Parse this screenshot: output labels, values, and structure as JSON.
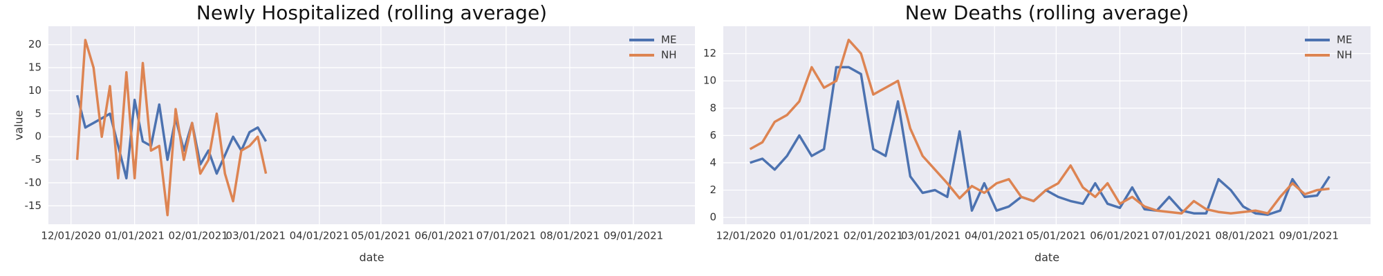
{
  "chart_data": [
    {
      "type": "line",
      "title": "Newly Hospitalized (rolling average)",
      "xlabel": "date",
      "ylabel": "value",
      "x": [
        "2020-12-04",
        "2020-12-08",
        "2020-12-12",
        "2020-12-16",
        "2020-12-20",
        "2020-12-24",
        "2020-12-28",
        "2021-01-01",
        "2021-01-05",
        "2021-01-09",
        "2021-01-13",
        "2021-01-17",
        "2021-01-21",
        "2021-01-25",
        "2021-01-29",
        "2021-02-02",
        "2021-02-06",
        "2021-02-10",
        "2021-02-14",
        "2021-02-18",
        "2021-02-22",
        "2021-02-26",
        "2021-03-02",
        "2021-03-06"
      ],
      "series": [
        {
          "name": "ME",
          "color": "#4c72b0",
          "values": [
            9,
            2,
            3,
            4,
            5,
            -2,
            -9,
            8,
            -1,
            -2,
            7,
            -5,
            4,
            -3,
            3,
            -6,
            -3,
            -8,
            -4,
            0,
            -3,
            1,
            2,
            -1
          ]
        },
        {
          "name": "NH",
          "color": "#dd8452",
          "values": [
            -5,
            21,
            15,
            0,
            11,
            -9,
            14,
            -9,
            16,
            -3,
            -2,
            -17,
            6,
            -5,
            3,
            -8,
            -5,
            5,
            -8,
            -14,
            -3,
            -2,
            0,
            -8
          ]
        }
      ],
      "xlim": [
        "2020-11-20",
        "2021-10-01"
      ],
      "xticks": [
        {
          "value": "2020-12-01",
          "label": "12/01/2020"
        },
        {
          "value": "2021-01-01",
          "label": "01/01/2021"
        },
        {
          "value": "2021-02-01",
          "label": "02/01/2021"
        },
        {
          "value": "2021-03-01",
          "label": "03/01/2021"
        },
        {
          "value": "2021-04-01",
          "label": "04/01/2021"
        },
        {
          "value": "2021-05-01",
          "label": "05/01/2021"
        },
        {
          "value": "2021-06-01",
          "label": "06/01/2021"
        },
        {
          "value": "2021-07-01",
          "label": "07/01/2021"
        },
        {
          "value": "2021-08-01",
          "label": "08/01/2021"
        },
        {
          "value": "2021-09-01",
          "label": "09/01/2021"
        }
      ],
      "ylim": [
        -19,
        24
      ],
      "yticks": [
        -15,
        -10,
        -5,
        0,
        5,
        10,
        15,
        20
      ],
      "grid": true,
      "legend": "upper right"
    },
    {
      "type": "line",
      "title": "New Deaths (rolling average)",
      "xlabel": "date",
      "x": [
        "2020-12-03",
        "2020-12-09",
        "2020-12-15",
        "2020-12-21",
        "2020-12-27",
        "2021-01-02",
        "2021-01-08",
        "2021-01-14",
        "2021-01-20",
        "2021-01-26",
        "2021-02-01",
        "2021-02-07",
        "2021-02-13",
        "2021-02-19",
        "2021-02-25",
        "2021-03-03",
        "2021-03-09",
        "2021-03-15",
        "2021-03-21",
        "2021-03-27",
        "2021-04-02",
        "2021-04-08",
        "2021-04-14",
        "2021-04-20",
        "2021-04-26",
        "2021-05-02",
        "2021-05-08",
        "2021-05-14",
        "2021-05-20",
        "2021-05-26",
        "2021-06-01",
        "2021-06-07",
        "2021-06-13",
        "2021-06-19",
        "2021-06-25",
        "2021-07-01",
        "2021-07-07",
        "2021-07-13",
        "2021-07-19",
        "2021-07-25",
        "2021-07-31",
        "2021-08-06",
        "2021-08-12",
        "2021-08-18",
        "2021-08-24",
        "2021-08-30",
        "2021-09-05",
        "2021-09-11"
      ],
      "series": [
        {
          "name": "ME",
          "color": "#4c72b0",
          "values": [
            4,
            4.3,
            3.5,
            4.5,
            6,
            4.5,
            5,
            11,
            11,
            10.5,
            5,
            4.5,
            8.5,
            3,
            1.8,
            2,
            1.5,
            6.3,
            0.5,
            2.5,
            0.5,
            0.8,
            1.5,
            1.2,
            2,
            1.5,
            1.2,
            1,
            2.5,
            1,
            0.7,
            2.2,
            0.6,
            0.5,
            1.5,
            0.5,
            0.3,
            0.3,
            2.8,
            2,
            0.8,
            0.3,
            0.2,
            0.5,
            2.8,
            1.5,
            1.6,
            3
          ]
        },
        {
          "name": "NH",
          "color": "#dd8452",
          "values": [
            5,
            5.5,
            7,
            7.5,
            8.5,
            11,
            9.5,
            10,
            13,
            12,
            9,
            9.5,
            10,
            6.5,
            4.5,
            3.5,
            2.5,
            1.4,
            2.3,
            1.8,
            2.5,
            2.8,
            1.5,
            1.2,
            2,
            2.5,
            3.8,
            2.2,
            1.5,
            2.5,
            1,
            1.5,
            0.8,
            0.5,
            0.4,
            0.3,
            1.2,
            0.6,
            0.4,
            0.3,
            0.4,
            0.5,
            0.3,
            1.5,
            2.5,
            1.7,
            2,
            2.1
          ]
        }
      ],
      "xlim": [
        "2020-11-20",
        "2021-10-01"
      ],
      "xticks": [
        {
          "value": "2020-12-01",
          "label": "12/01/2020"
        },
        {
          "value": "2021-01-01",
          "label": "01/01/2021"
        },
        {
          "value": "2021-02-01",
          "label": "02/01/2021"
        },
        {
          "value": "2021-03-01",
          "label": "03/01/2021"
        },
        {
          "value": "2021-04-01",
          "label": "04/01/2021"
        },
        {
          "value": "2021-05-01",
          "label": "05/01/2021"
        },
        {
          "value": "2021-06-01",
          "label": "06/01/2021"
        },
        {
          "value": "2021-07-01",
          "label": "07/01/2021"
        },
        {
          "value": "2021-08-01",
          "label": "08/01/2021"
        },
        {
          "value": "2021-09-01",
          "label": "09/01/2021"
        }
      ],
      "ylim": [
        -0.5,
        14
      ],
      "yticks": [
        0,
        2,
        4,
        6,
        8,
        10,
        12
      ],
      "grid": true,
      "legend": "upper right"
    }
  ]
}
